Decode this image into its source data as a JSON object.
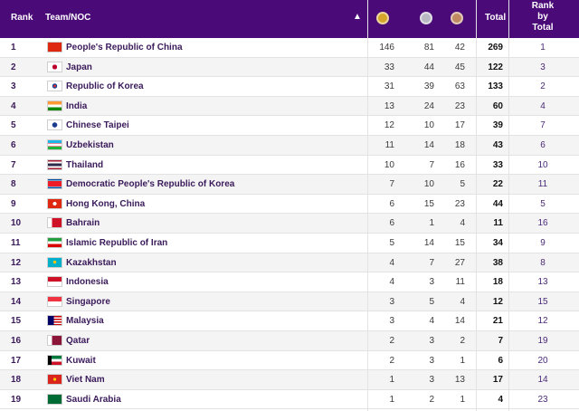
{
  "header": {
    "rank": "Rank",
    "team": "Team/NOC",
    "sort_icon": "sort-icon",
    "gold_icon": "gold-medal-icon",
    "silver_icon": "silver-medal-icon",
    "bronze_icon": "bronze-medal-icon",
    "total": "Total",
    "rank_by_total_1": "Rank",
    "rank_by_total_2": "by",
    "rank_by_total_3": "Total"
  },
  "colors": {
    "header_bg": "#4a0a78",
    "gold": "#d4a62a",
    "silver": "#b9b9c4",
    "bronze": "#c08a62"
  },
  "rows": [
    {
      "rank": "1",
      "team": "People's Republic of China",
      "gold": "146",
      "silver": "81",
      "bronze": "42",
      "total": "269",
      "rank_by_total": "1",
      "flag": "cn-flag-icon"
    },
    {
      "rank": "2",
      "team": "Japan",
      "gold": "33",
      "silver": "44",
      "bronze": "45",
      "total": "122",
      "rank_by_total": "3",
      "flag": "jp-flag-icon"
    },
    {
      "rank": "3",
      "team": "Republic of Korea",
      "gold": "31",
      "silver": "39",
      "bronze": "63",
      "total": "133",
      "rank_by_total": "2",
      "flag": "kr-flag-icon"
    },
    {
      "rank": "4",
      "team": "India",
      "gold": "13",
      "silver": "24",
      "bronze": "23",
      "total": "60",
      "rank_by_total": "4",
      "flag": "in-flag-icon"
    },
    {
      "rank": "5",
      "team": "Chinese Taipei",
      "gold": "12",
      "silver": "10",
      "bronze": "17",
      "total": "39",
      "rank_by_total": "7",
      "flag": "tpe-flag-icon"
    },
    {
      "rank": "6",
      "team": "Uzbekistan",
      "gold": "11",
      "silver": "14",
      "bronze": "18",
      "total": "43",
      "rank_by_total": "6",
      "flag": "uz-flag-icon"
    },
    {
      "rank": "7",
      "team": "Thailand",
      "gold": "10",
      "silver": "7",
      "bronze": "16",
      "total": "33",
      "rank_by_total": "10",
      "flag": "th-flag-icon"
    },
    {
      "rank": "8",
      "team": "Democratic People's Republic of Korea",
      "gold": "7",
      "silver": "10",
      "bronze": "5",
      "total": "22",
      "rank_by_total": "11",
      "flag": "kp-flag-icon"
    },
    {
      "rank": "9",
      "team": "Hong Kong, China",
      "gold": "6",
      "silver": "15",
      "bronze": "23",
      "total": "44",
      "rank_by_total": "5",
      "flag": "hk-flag-icon"
    },
    {
      "rank": "10",
      "team": "Bahrain",
      "gold": "6",
      "silver": "1",
      "bronze": "4",
      "total": "11",
      "rank_by_total": "16",
      "flag": "bh-flag-icon"
    },
    {
      "rank": "11",
      "team": "Islamic Republic of Iran",
      "gold": "5",
      "silver": "14",
      "bronze": "15",
      "total": "34",
      "rank_by_total": "9",
      "flag": "ir-flag-icon"
    },
    {
      "rank": "12",
      "team": "Kazakhstan",
      "gold": "4",
      "silver": "7",
      "bronze": "27",
      "total": "38",
      "rank_by_total": "8",
      "flag": "kz-flag-icon"
    },
    {
      "rank": "13",
      "team": "Indonesia",
      "gold": "4",
      "silver": "3",
      "bronze": "11",
      "total": "18",
      "rank_by_total": "13",
      "flag": "id-flag-icon"
    },
    {
      "rank": "14",
      "team": "Singapore",
      "gold": "3",
      "silver": "5",
      "bronze": "4",
      "total": "12",
      "rank_by_total": "15",
      "flag": "sg-flag-icon"
    },
    {
      "rank": "15",
      "team": "Malaysia",
      "gold": "3",
      "silver": "4",
      "bronze": "14",
      "total": "21",
      "rank_by_total": "12",
      "flag": "my-flag-icon"
    },
    {
      "rank": "16",
      "team": "Qatar",
      "gold": "2",
      "silver": "3",
      "bronze": "2",
      "total": "7",
      "rank_by_total": "19",
      "flag": "qa-flag-icon"
    },
    {
      "rank": "17",
      "team": "Kuwait",
      "gold": "2",
      "silver": "3",
      "bronze": "1",
      "total": "6",
      "rank_by_total": "20",
      "flag": "kw-flag-icon"
    },
    {
      "rank": "18",
      "team": "Viet Nam",
      "gold": "1",
      "silver": "3",
      "bronze": "13",
      "total": "17",
      "rank_by_total": "14",
      "flag": "vn-flag-icon"
    },
    {
      "rank": "19",
      "team": "Saudi Arabia",
      "gold": "1",
      "silver": "2",
      "bronze": "1",
      "total": "4",
      "rank_by_total": "23",
      "flag": "sa-flag-icon"
    }
  ]
}
